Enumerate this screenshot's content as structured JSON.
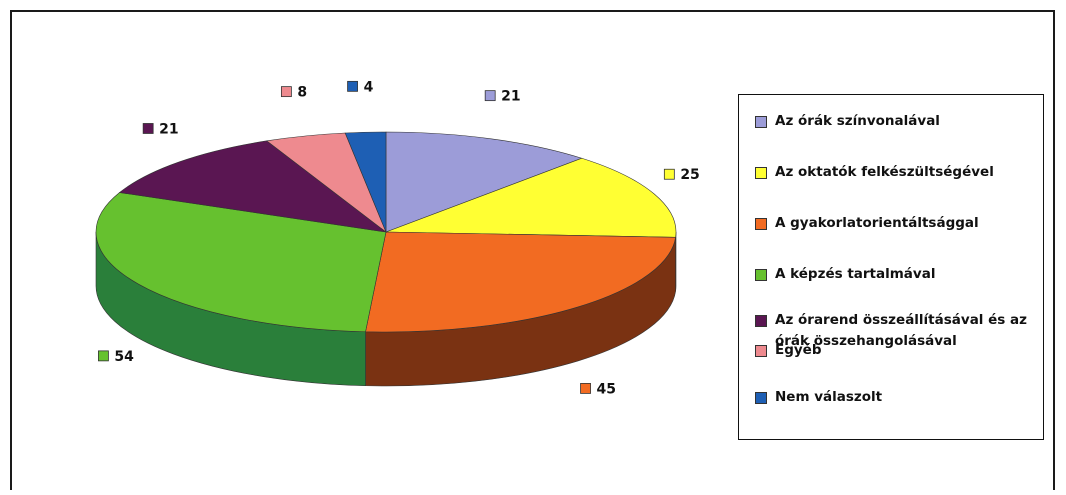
{
  "chart_data": {
    "type": "pie",
    "style": "3d",
    "title": "",
    "legend_position": "right",
    "categories": [
      "Az órák színvonalával",
      "Az oktatók felkészültségével",
      "A gyakorlatorientáltsággal",
      "A képzés tartalmával",
      "Az órarend összeállításával és az órák összehangolásával",
      "Egyéb",
      "Nem válaszolt"
    ],
    "values": [
      21,
      25,
      45,
      54,
      21,
      8,
      4
    ],
    "colors": [
      "#9c9cd8",
      "#ffff33",
      "#f26b22",
      "#66c12f",
      "#5a1652",
      "#ee8a8f",
      "#1e5fb4"
    ],
    "side_colors": [
      "#4e4e8c",
      "#a6a61a",
      "#7a3212",
      "#2a7f3a",
      "#2e0a2a",
      "#a04a4f",
      "#0f3468"
    ]
  }
}
